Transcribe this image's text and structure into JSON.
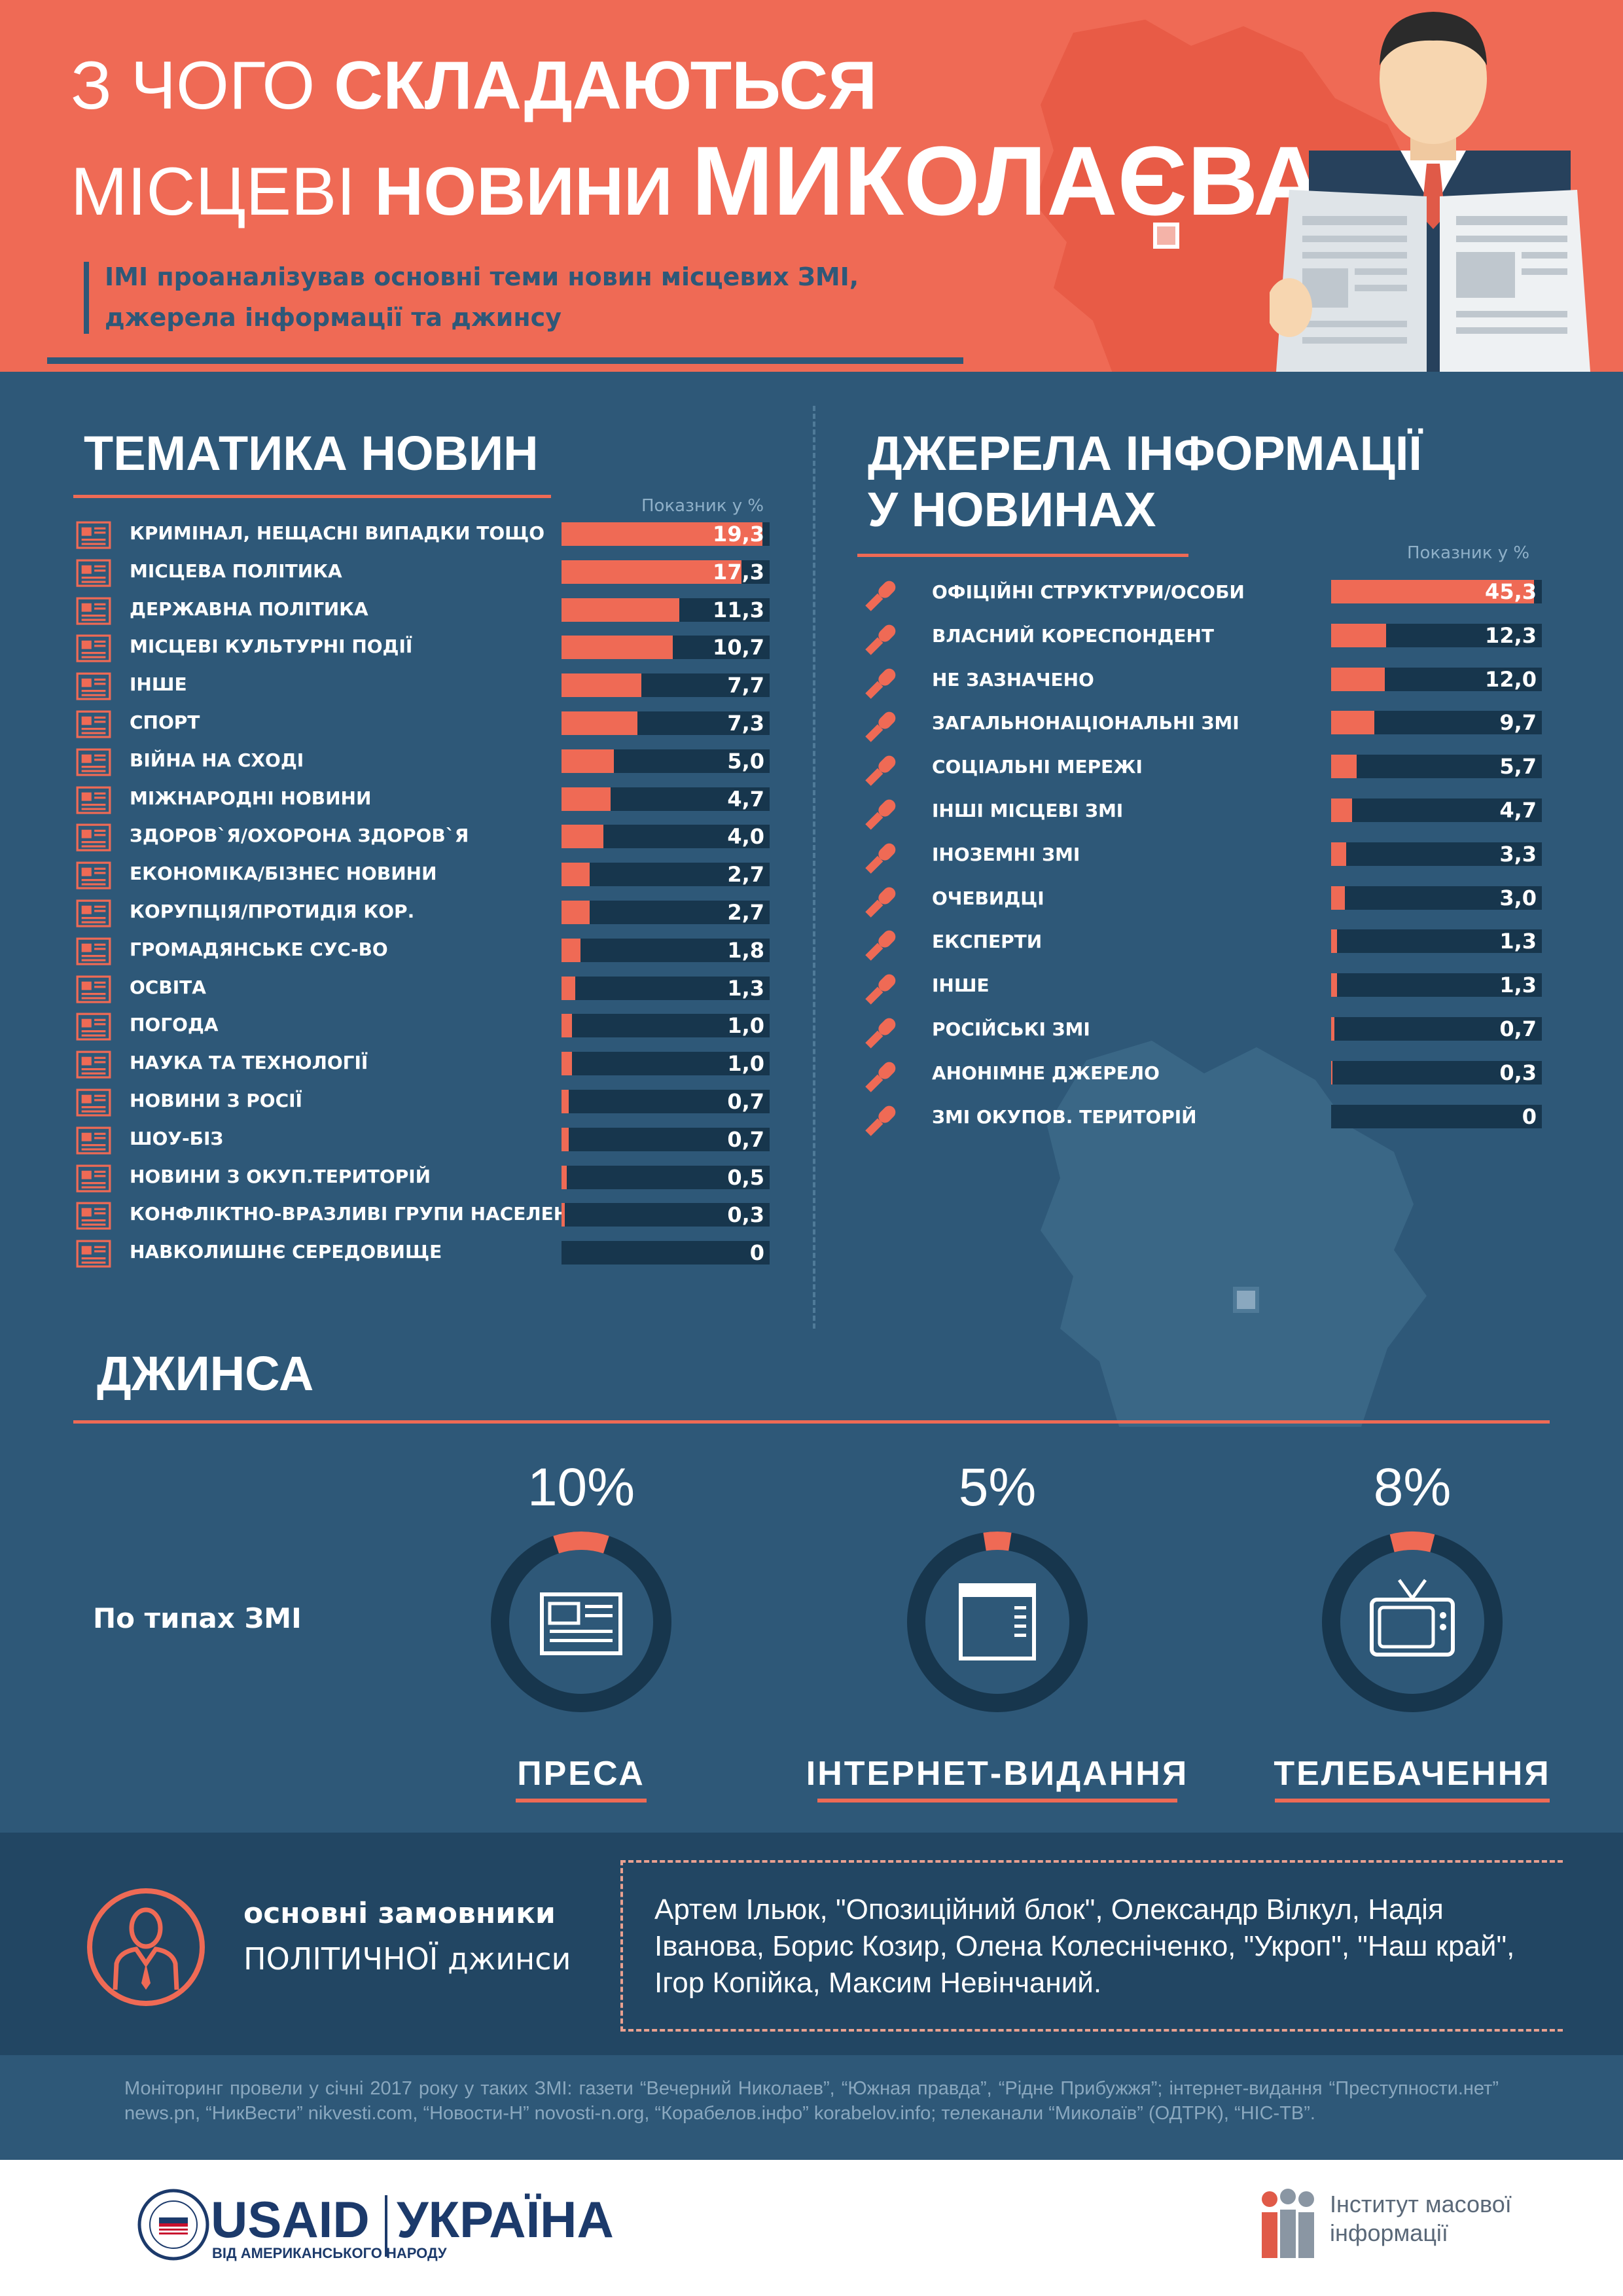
{
  "header": {
    "title_line1_light": "З ЧОГО ",
    "title_line1_bold": "СКЛАДАЮТЬСЯ",
    "title_line2_light": "МІСЦЕВІ ",
    "title_line2_bold": "НОВИНИ ",
    "title_line2_huge": "МИКОЛАЄВА",
    "subtitle_line1": "ІМІ проаналізував основні теми новин місцевих ЗМІ,",
    "subtitle_line2": "джерела інформації та джинсу"
  },
  "colors": {
    "accent": "#ef6a55",
    "background": "#2e5878",
    "bar_track": "#17364d",
    "dark_band": "#224663"
  },
  "chart_data": [
    {
      "type": "bar",
      "title": "ТЕМАТИКА НОВИН",
      "value_note": "Показник у %",
      "icon": "newspaper-icon",
      "categories": [
        "КРИМІНАЛ, НЕЩАСНІ ВИПАДКИ ТОЩО",
        "МІСЦЕВА ПОЛІТИКА",
        "ДЕРЖАВНА ПОЛІТИКА",
        "МІСЦЕВІ КУЛЬТУРНІ ПОДІЇ",
        "ІНШЕ",
        "СПОРТ",
        "ВІЙНА НА СХОДІ",
        "МІЖНАРОДНІ НОВИНИ",
        "ЗДОРОВ`Я/ОХОРОНА ЗДОРОВ`Я",
        "ЕКОНОМІКА/БІЗНЕС НОВИНИ",
        "КОРУПЦІЯ/ПРОТИДІЯ КОР.",
        "ГРОМАДЯНСЬКЕ СУС-ВО",
        "ОСВІТА",
        "ПОГОДА",
        "НАУКА ТА ТЕХНОЛОГІЇ",
        "НОВИНИ З РОСІЇ",
        "ШОУ-БІЗ",
        "НОВИНИ З ОКУП.ТЕРИТОРІЙ",
        "КОНФЛІКТНО-ВРАЗЛИВІ ГРУПИ НАСЕЛЕННЯ",
        "НАВКОЛИШНЄ СЕРЕДОВИЩЕ"
      ],
      "values": [
        19.3,
        17.3,
        11.3,
        10.7,
        7.7,
        7.3,
        5.0,
        4.7,
        4.0,
        2.7,
        2.7,
        1.8,
        1.3,
        1.0,
        1.0,
        0.7,
        0.7,
        0.5,
        0.3,
        0
      ],
      "value_labels": [
        "19,3",
        "17,3",
        "11,3",
        "10,7",
        "7,7",
        "7,3",
        "5,0",
        "4,7",
        "4,0",
        "2,7",
        "2,7",
        "1,8",
        "1,3",
        "1,0",
        "1,0",
        "0,7",
        "0,7",
        "0,5",
        "0,3",
        "0"
      ],
      "xlim": [
        0,
        20
      ]
    },
    {
      "type": "bar",
      "title_line1": "ДЖЕРЕЛА ІНФОРМАЦІЇ",
      "title_line2": "У НОВИНАХ",
      "value_note": "Показник у %",
      "icon": "microphone-icon",
      "categories": [
        "ОФІЦІЙНІ СТРУКТУРИ/ОСОБИ",
        "ВЛАСНИЙ КОРЕСПОНДЕНТ",
        "НЕ ЗАЗНАЧЕНО",
        "ЗАГАЛЬНОНАЦІОНАЛЬНІ ЗМІ",
        "СОЦІАЛЬНІ МЕРЕЖІ",
        "ІНШІ МІСЦЕВІ ЗМІ",
        "ІНОЗЕМНІ ЗМІ",
        "ОЧЕВИДЦІ",
        "ЕКСПЕРТИ",
        "ІНШЕ",
        "РОСІЙСЬКІ ЗМІ",
        "АНОНІМНЕ ДЖЕРЕЛО",
        "ЗМІ ОКУПОВ. ТЕРИТОРІЙ"
      ],
      "values": [
        45.3,
        12.3,
        12.0,
        9.7,
        5.7,
        4.7,
        3.3,
        3.0,
        1.3,
        1.3,
        0.7,
        0.3,
        0
      ],
      "value_labels": [
        "45,3",
        "12,3",
        "12,0",
        "9,7",
        "5,7",
        "4,7",
        "3,3",
        "3,0",
        "1,3",
        "1,3",
        "0,7",
        "0,3",
        "0"
      ],
      "xlim": [
        0,
        47
      ]
    }
  ],
  "jeans": {
    "title": "ДЖИНСА",
    "by_type": "По типах ЗМІ",
    "items": [
      {
        "label": "ПРЕСА",
        "pct_label": "10%",
        "value": 10,
        "icon": "newspaper-icon"
      },
      {
        "label": "ІНТЕРНЕТ-ВИДАННЯ",
        "pct_label": "5%",
        "value": 5,
        "icon": "browser-window-icon"
      },
      {
        "label": "ТЕЛЕБАЧЕННЯ",
        "pct_label": "8%",
        "value": 8,
        "icon": "tv-icon"
      }
    ]
  },
  "clients": {
    "label_line1": "основні замовники",
    "label_line2": "ПОЛІТИЧНОЇ джинси",
    "text": "Артем Ільюк, \"Опозиційний блок\", Олександр Вілкул, Надія Іванова, Борис Козир, Олена Колесніченко, \"Укроп\", \"Наш край\", Ігор Копійка, Максим Невінчаний."
  },
  "footnote": "Моніторинг провели у січні 2017 року у таких ЗМІ: газети “Вечерний Николаев”, “Южная правда”, “Рідне Прибужжя”; інтернет-видання “Преступности.нет” news.pn, “НикВести” nikvesti.com, “Новости-Н” novosti-n.org, “Корабелов.інфо” korabelov.info; телеканали “Миколаїв” (ОДТРК), “НІС-ТВ”.",
  "footer": {
    "usaid": "USAID",
    "usaid_sub": "ВІД АМЕРИКАНСЬКОГО НАРОДУ",
    "ukraine": "УКРАЇНА",
    "imi_line1": "Інститут масової",
    "imi_line2": "інформації"
  }
}
